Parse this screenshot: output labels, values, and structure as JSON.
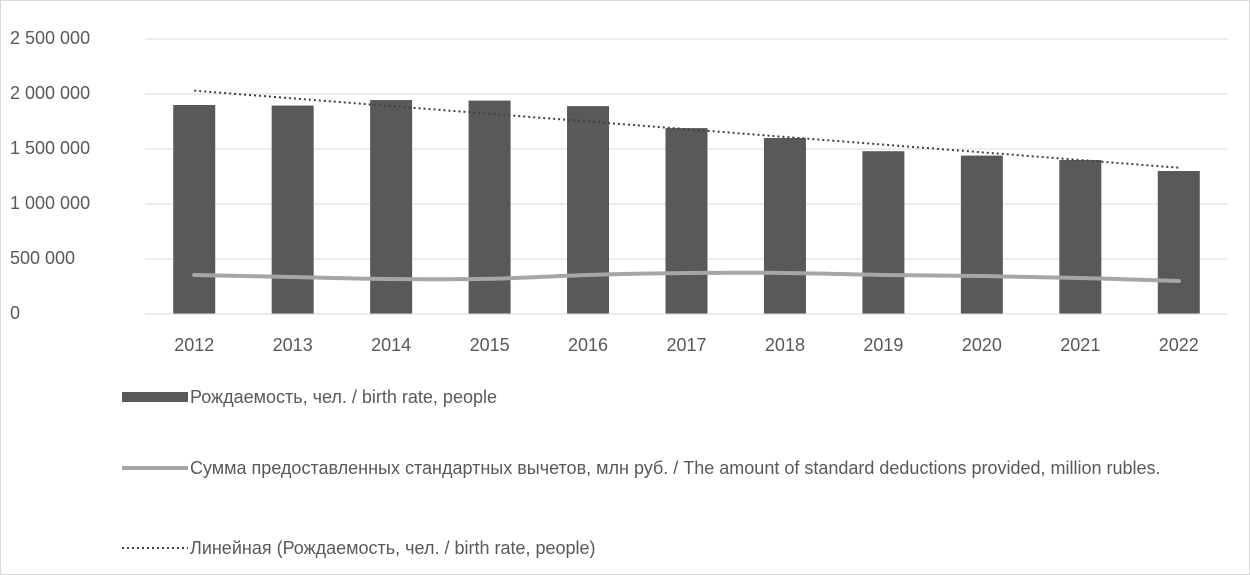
{
  "chart_data": {
    "type": "bar",
    "categories": [
      "2012",
      "2013",
      "2014",
      "2015",
      "2016",
      "2017",
      "2018",
      "2019",
      "2020",
      "2021",
      "2022"
    ],
    "series": [
      {
        "name": "Рождаемость, чел. / birth rate, people",
        "type": "bar",
        "color": "#595959",
        "values": [
          1900000,
          1895000,
          1945000,
          1940000,
          1890000,
          1690000,
          1600000,
          1480000,
          1440000,
          1400000,
          1300000
        ]
      },
      {
        "name": "Сумма предоставленных стандартных вычетов, млн руб. / The amount of standard deductions provided, million rubles.",
        "type": "line",
        "color": "#a6a6a6",
        "values": [
          355000,
          336000,
          318000,
          320000,
          355000,
          373000,
          373000,
          355000,
          345000,
          327000,
          300000
        ]
      }
    ],
    "trendline": {
      "name": "Линейная (Рождаемость, чел. / birth rate, people)",
      "series": 0,
      "color": "#404040"
    },
    "ylim": [
      0,
      2500000
    ],
    "yticks": [
      0,
      {
        "value": 500000,
        "label": "500 000"
      },
      {
        "value": 1000000,
        "label": "1 000 000"
      },
      {
        "value": 1500000,
        "label": "1 500 000"
      },
      {
        "value": 2000000,
        "label": "2 000 000"
      },
      {
        "value": 2500000,
        "label": "2 500 000"
      }
    ],
    "grid": true
  }
}
